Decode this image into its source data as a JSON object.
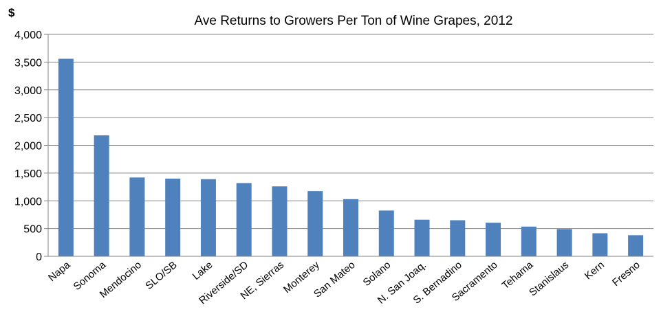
{
  "chart_data": {
    "type": "bar",
    "title": "Ave Returns to Growers Per Ton of Wine Grapes, 2012",
    "ylabel": "$",
    "xlabel": "",
    "ylim": [
      0,
      4000
    ],
    "yticks": [
      "0",
      "500",
      "1,000",
      "1,500",
      "2,000",
      "2,500",
      "3,000",
      "3,500",
      "4,000"
    ],
    "grid": true,
    "legend": "none",
    "bar_color": "#4f81bd",
    "categories": [
      "Napa",
      "Sonoma",
      "Mendocino",
      "SLO/SB",
      "Lake",
      "Riverside/SD",
      "NE, Sierras",
      "Monterey",
      "San Mateo",
      "Solano",
      "N. San Joaq.",
      "S. Bernadino",
      "Sacramento",
      "Tehama",
      "Stanislaus",
      "Kern",
      "Fresno"
    ],
    "values": [
      3560,
      2180,
      1420,
      1400,
      1390,
      1320,
      1260,
      1175,
      1030,
      825,
      660,
      650,
      605,
      535,
      490,
      415,
      380
    ]
  }
}
